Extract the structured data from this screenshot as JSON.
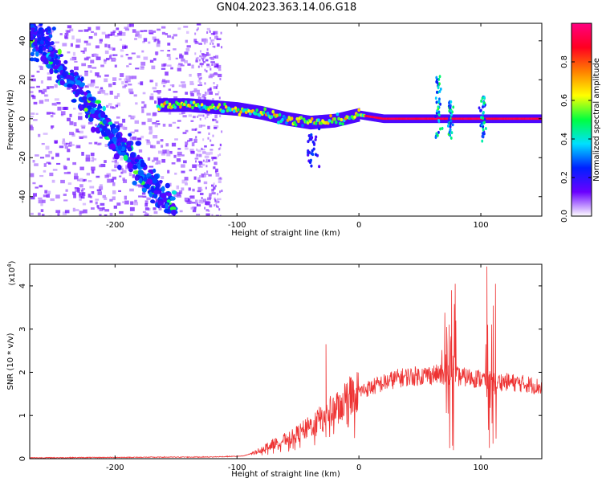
{
  "title": "GN04.2023.363.14.06.G18",
  "chart_data": [
    {
      "type": "heatmap",
      "xlabel": "Height of straight line (km)",
      "ylabel": "Frequency (Hz)",
      "xlim": [
        -270,
        150
      ],
      "ylim": [
        -50,
        49
      ],
      "xticks": [
        -200,
        -100,
        0,
        100
      ],
      "yticks": [
        -40,
        -20,
        0,
        20,
        40
      ],
      "colorbar": {
        "label": "Normalized spectral amplitude",
        "range": [
          0,
          1
        ],
        "ticks": [
          0.0,
          0.2,
          0.4,
          0.6,
          0.8
        ],
        "tick_labels": [
          "0.0",
          "0.2",
          "0.4",
          "0.6",
          "0.8"
        ],
        "colormap": [
          "#ffffff",
          "#6a00ff",
          "#0020ff",
          "#00e0ff",
          "#00ff40",
          "#ffff00",
          "#ff8000",
          "#ff0020",
          "#ff0080"
        ]
      },
      "features": [
        {
          "name": "descending trace",
          "x": [
            -270,
            -250,
            -230,
            -210,
            -190,
            -170,
            -150
          ],
          "y": [
            44,
            30,
            15,
            -2,
            -18,
            -33,
            -48
          ]
        },
        {
          "name": "main line",
          "x": [
            -165,
            -140,
            -120,
            -100,
            -80,
            -60,
            -40,
            -20,
            0,
            20,
            60,
            100,
            150
          ],
          "y": [
            7,
            7,
            6,
            5,
            3,
            0,
            -2,
            -1,
            2,
            0,
            0,
            0,
            0
          ]
        }
      ]
    },
    {
      "type": "line",
      "xlabel": "Height of straight line (km)",
      "ylabel": "SNR (10 * v/v)",
      "yscale_label": "(x10",
      "yscale_exp": "4",
      "xlim": [
        -270,
        150
      ],
      "ylim": [
        0,
        4.5
      ],
      "xticks": [
        -200,
        -100,
        0,
        100
      ],
      "yticks": [
        0,
        1,
        2,
        3,
        4
      ],
      "color": "#ee3333",
      "envelope": {
        "x": [
          -270,
          -200,
          -120,
          -95,
          -85,
          -70,
          -55,
          -40,
          -30,
          -20,
          -10,
          0,
          10,
          20,
          30,
          40,
          50,
          60,
          70,
          80,
          90,
          100,
          110,
          120,
          130,
          140,
          150
        ],
        "y": [
          0.02,
          0.03,
          0.04,
          0.06,
          0.15,
          0.35,
          0.5,
          0.75,
          0.95,
          1.15,
          1.4,
          1.55,
          1.65,
          1.75,
          1.85,
          1.9,
          1.92,
          1.95,
          1.95,
          1.9,
          1.88,
          1.85,
          1.8,
          1.78,
          1.75,
          1.72,
          1.65
        ]
      },
      "spikes": [
        {
          "x": -27,
          "y": 2.65
        },
        {
          "x": 72,
          "y": 3.05
        },
        {
          "x": 76,
          "y": 3.9
        },
        {
          "x": 77.5,
          "y": 0.2
        },
        {
          "x": 79,
          "y": 4.05
        },
        {
          "x": 105,
          "y": 4.45
        },
        {
          "x": 107,
          "y": 0.25
        },
        {
          "x": 112,
          "y": 4.05
        },
        {
          "x": 110,
          "y": 0.35
        }
      ]
    }
  ]
}
